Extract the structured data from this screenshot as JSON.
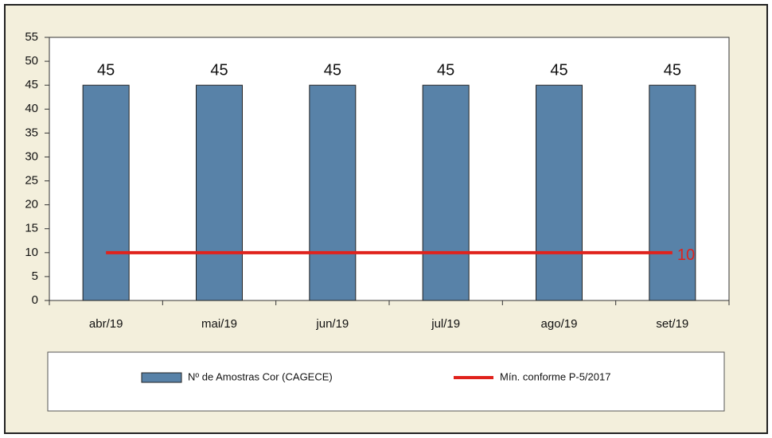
{
  "chart_data": {
    "type": "bar",
    "categories": [
      "abr/19",
      "mai/19",
      "jun/19",
      "jul/19",
      "ago/19",
      "set/19"
    ],
    "series": [
      {
        "name": "Nº de Amostras Cor (CAGECE)",
        "type": "bar",
        "color": "#5882a8",
        "values": [
          45,
          45,
          45,
          45,
          45,
          45
        ],
        "data_labels": true
      },
      {
        "name": "Mín. conforme P-5/2017",
        "type": "line",
        "color": "#e0221c",
        "values": [
          10,
          10,
          10,
          10,
          10,
          10
        ],
        "value_labels": [
          null,
          null,
          null,
          null,
          null,
          "10"
        ]
      }
    ],
    "ylim": [
      0,
      55
    ],
    "yticks": [
      0,
      5,
      10,
      15,
      20,
      25,
      30,
      35,
      40,
      45,
      50,
      55
    ],
    "legend": "bottom"
  }
}
